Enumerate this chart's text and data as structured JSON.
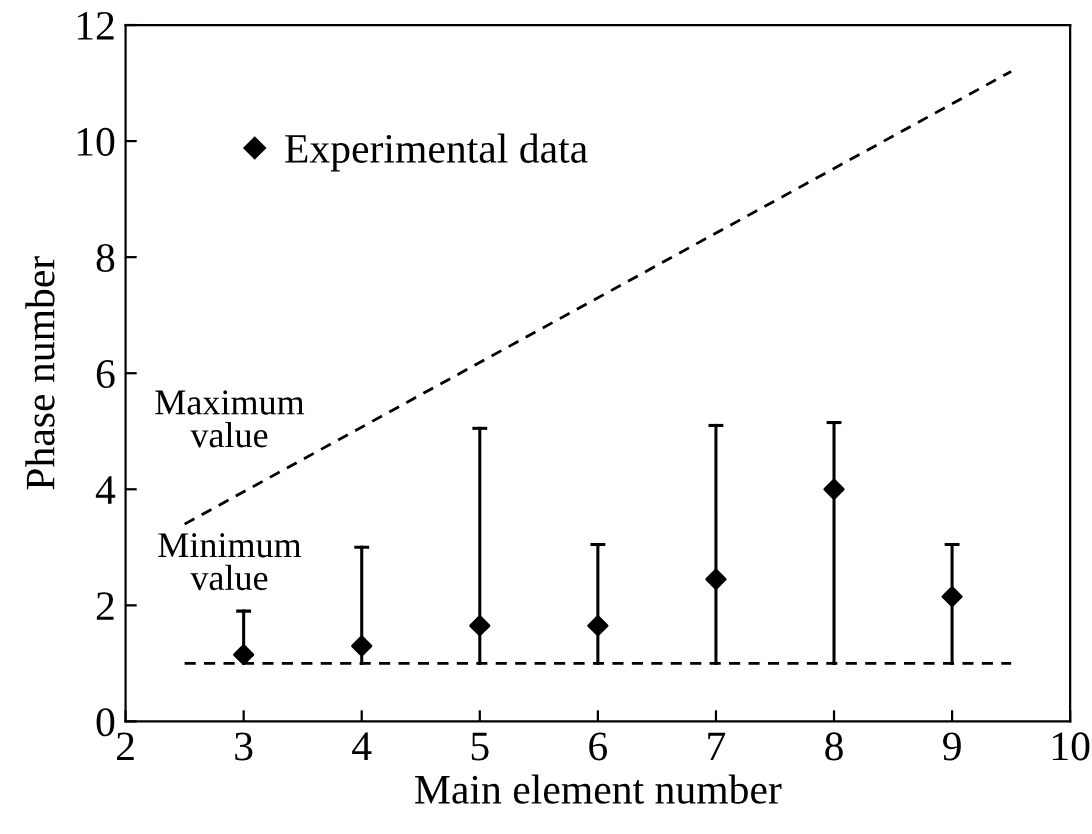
{
  "chart_data": {
    "type": "scatter",
    "xlabel": "Main element number",
    "ylabel": "Phase number",
    "xlim": [
      2,
      10
    ],
    "ylim": [
      0,
      12
    ],
    "xticks": [
      2,
      3,
      4,
      5,
      6,
      7,
      8,
      9,
      10
    ],
    "yticks": [
      0,
      2,
      4,
      6,
      8,
      10,
      12
    ],
    "grid": false,
    "legend": "top left",
    "series": [
      {
        "name": "Experimental data",
        "color": "#000000",
        "marker": "diamond",
        "x": [
          3,
          4,
          5,
          6,
          7,
          8,
          9
        ],
        "values": [
          1.15,
          1.3,
          1.65,
          1.65,
          2.45,
          4.0,
          2.15
        ],
        "errors": [
          [
            1,
            1.9
          ],
          [
            1,
            3.0
          ],
          [
            1,
            5.05
          ],
          [
            1,
            3.05
          ],
          [
            1,
            5.1
          ],
          [
            1,
            5.15
          ],
          [
            1,
            3.05
          ]
        ]
      },
      {
        "type": "line",
        "color": "#000000",
        "line_style": "dashed",
        "x": [
          2.5,
          9.5
        ],
        "values": [
          3.4,
          11.2
        ]
      },
      {
        "type": "line",
        "color": "#000000",
        "line_style": "dashed",
        "x": [
          2.5,
          9.5
        ],
        "values": [
          1,
          1
        ]
      }
    ],
    "annotations": [
      "Maximum\nvalue",
      "Minimum\nvalue"
    ]
  }
}
